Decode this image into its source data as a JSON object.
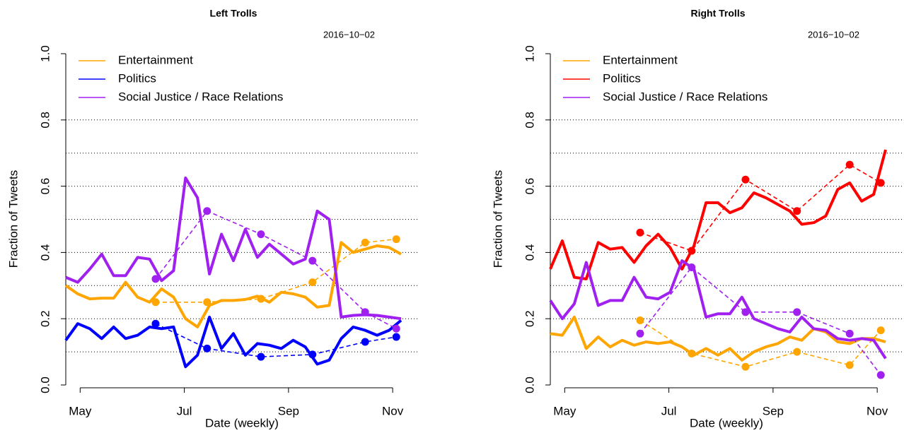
{
  "chart_data": [
    {
      "type": "line",
      "title": "Left Trolls",
      "annotation": "2016−10−02",
      "x_label": "Date (weekly)",
      "y_label": "Fraction of Tweets",
      "legend": "top-left",
      "x": [
        0,
        1,
        2,
        3,
        4,
        5,
        6,
        7,
        8,
        9,
        10,
        11,
        12,
        13,
        14,
        15,
        16,
        17,
        18,
        19,
        20,
        21,
        22,
        23,
        24,
        25,
        26,
        27,
        28
      ],
      "xlim": [
        0,
        28
      ],
      "xticks": [
        {
          "value": 1.2,
          "label": "May"
        },
        {
          "value": 9.9,
          "label": "Jul"
        },
        {
          "value": 18.6,
          "label": "Sep"
        },
        {
          "value": 27.3,
          "label": "Nov"
        }
      ],
      "ylim": [
        0,
        1
      ],
      "yticks": [
        {
          "value": 0,
          "label": "0.0"
        },
        0.2,
        0.4,
        0.6,
        0.8,
        {
          "value": 1,
          "label": "1.0"
        }
      ],
      "grid_lines": [
        0.1,
        0.2,
        0.3,
        0.4,
        0.5,
        0.6,
        0.7,
        0.8
      ],
      "series": [
        {
          "name": "Entertainment",
          "color": "#FFA500",
          "values": [
            0.3,
            0.275,
            0.26,
            0.262,
            0.262,
            0.31,
            0.265,
            0.25,
            0.29,
            0.265,
            0.2,
            0.175,
            0.24,
            0.255,
            0.255,
            0.258,
            0.268,
            0.25,
            0.28,
            0.275,
            0.265,
            0.235,
            0.24,
            0.43,
            0.4,
            0.41,
            0.42,
            0.415,
            0.395
          ],
          "monthly": {
            "x": [
              7.5,
              11.8,
              16.3,
              20.6,
              25,
              27.6
            ],
            "values": [
              0.25,
              0.25,
              0.26,
              0.31,
              0.43,
              0.44
            ]
          }
        },
        {
          "name": "Politics",
          "color": "#0000FF",
          "values": [
            0.135,
            0.185,
            0.17,
            0.14,
            0.175,
            0.14,
            0.15,
            0.175,
            0.17,
            0.175,
            0.055,
            0.09,
            0.205,
            0.11,
            0.155,
            0.09,
            0.125,
            0.12,
            0.11,
            0.135,
            0.115,
            0.063,
            0.075,
            0.14,
            0.175,
            0.165,
            0.15,
            0.165,
            0.195
          ],
          "monthly": {
            "x": [
              7.5,
              11.8,
              16.3,
              20.6,
              25,
              27.6
            ],
            "values": [
              0.185,
              0.11,
              0.085,
              0.092,
              0.13,
              0.145
            ]
          }
        },
        {
          "name": "Social Justice / Race Relations",
          "color": "#A020F0",
          "values": [
            0.325,
            0.31,
            0.35,
            0.395,
            0.33,
            0.33,
            0.385,
            0.38,
            0.315,
            0.345,
            0.625,
            0.565,
            0.335,
            0.455,
            0.375,
            0.47,
            0.385,
            0.425,
            0.395,
            0.365,
            0.38,
            0.525,
            0.5,
            0.205,
            0.21,
            0.212,
            0.21,
            0.205,
            0.2
          ],
          "monthly": {
            "x": [
              7.5,
              11.8,
              16.3,
              20.6,
              25,
              27.6
            ],
            "values": [
              0.32,
              0.525,
              0.455,
              0.375,
              0.22,
              0.17
            ]
          }
        }
      ]
    },
    {
      "type": "line",
      "title": "Right Trolls",
      "annotation": "2016−10−02",
      "x_label": "Date (weekly)",
      "y_label": "Fraction of Tweets",
      "legend": "top-left",
      "x": [
        0,
        1,
        2,
        3,
        4,
        5,
        6,
        7,
        8,
        9,
        10,
        11,
        12,
        13,
        14,
        15,
        16,
        17,
        18,
        19,
        20,
        21,
        22,
        23,
        24,
        25,
        26,
        27,
        28
      ],
      "xlim": [
        0,
        28
      ],
      "xticks": [
        {
          "value": 1.2,
          "label": "May"
        },
        {
          "value": 9.9,
          "label": "Jul"
        },
        {
          "value": 18.6,
          "label": "Sep"
        },
        {
          "value": 27.3,
          "label": "Nov"
        }
      ],
      "ylim": [
        0,
        1
      ],
      "yticks": [
        {
          "value": 0,
          "label": "0.0"
        },
        0.2,
        0.4,
        0.6,
        0.8,
        {
          "value": 1,
          "label": "1.0"
        }
      ],
      "grid_lines": [
        0.1,
        0.2,
        0.3,
        0.4,
        0.5,
        0.6,
        0.7,
        0.8
      ],
      "series": [
        {
          "name": "Entertainment",
          "color": "#FFA500",
          "values": [
            0.155,
            0.15,
            0.205,
            0.11,
            0.145,
            0.115,
            0.135,
            0.12,
            0.13,
            0.125,
            0.13,
            0.115,
            0.09,
            0.11,
            0.09,
            0.11,
            0.075,
            0.1,
            0.115,
            0.125,
            0.145,
            0.135,
            0.17,
            0.16,
            0.13,
            0.125,
            0.14,
            0.14,
            0.13
          ],
          "monthly": {
            "x": [
              7.5,
              11.8,
              16.3,
              20.6,
              25,
              27.6
            ],
            "values": [
              0.195,
              0.095,
              0.055,
              0.1,
              0.06,
              0.165
            ]
          }
        },
        {
          "name": "Politics",
          "color": "#FF0000",
          "values": [
            0.35,
            0.435,
            0.325,
            0.32,
            0.43,
            0.41,
            0.415,
            0.37,
            0.42,
            0.455,
            0.415,
            0.35,
            0.42,
            0.55,
            0.55,
            0.52,
            0.535,
            0.58,
            0.565,
            0.545,
            0.525,
            0.485,
            0.49,
            0.51,
            0.59,
            0.61,
            0.555,
            0.575,
            0.71
          ],
          "monthly": {
            "x": [
              7.5,
              11.8,
              16.3,
              20.6,
              25,
              27.6
            ],
            "values": [
              0.46,
              0.405,
              0.62,
              0.525,
              0.665,
              0.61
            ]
          }
        },
        {
          "name": "Social Justice / Race Relations",
          "color": "#A020F0",
          "values": [
            0.255,
            0.2,
            0.245,
            0.37,
            0.24,
            0.255,
            0.255,
            0.325,
            0.265,
            0.26,
            0.28,
            0.375,
            0.35,
            0.205,
            0.215,
            0.215,
            0.265,
            0.2,
            0.185,
            0.17,
            0.16,
            0.205,
            0.17,
            0.165,
            0.14,
            0.135,
            0.14,
            0.135,
            0.08
          ],
          "monthly": {
            "x": [
              7.5,
              11.8,
              16.3,
              20.6,
              25,
              27.6
            ],
            "values": [
              0.155,
              0.355,
              0.22,
              0.22,
              0.155,
              0.03
            ]
          }
        }
      ]
    }
  ]
}
